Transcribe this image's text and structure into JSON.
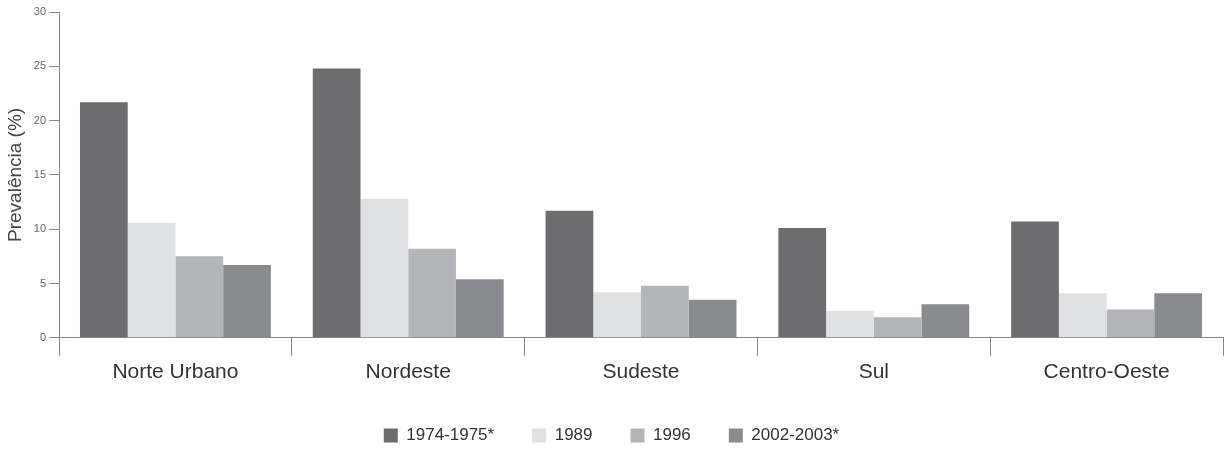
{
  "chart_data": {
    "type": "bar",
    "ylabel": "Prevalência (%)",
    "categories": [
      "Norte Urbano",
      "Nordeste",
      "Sudeste",
      "Sul",
      "Centro-Oeste"
    ],
    "series": [
      {
        "name": "1974-1975*",
        "color": "#6d6d6f",
        "values": [
          21.7,
          24.8,
          11.7,
          10.1,
          10.7
        ]
      },
      {
        "name": "1989",
        "color": "#e0e1e3",
        "values": [
          10.6,
          12.8,
          4.2,
          2.5,
          4.1
        ]
      },
      {
        "name": "1996",
        "color": "#b4b5b8",
        "values": [
          7.5,
          8.2,
          4.8,
          1.9,
          2.6
        ]
      },
      {
        "name": "2002-2003*",
        "color": "#8a8b8e",
        "values": [
          6.7,
          5.4,
          3.5,
          3.1,
          4.1
        ]
      }
    ],
    "ylim": [
      0,
      30
    ],
    "yticks": [
      0,
      5,
      10,
      15,
      20,
      25,
      30
    ],
    "grid": false,
    "legend": "bottom"
  }
}
